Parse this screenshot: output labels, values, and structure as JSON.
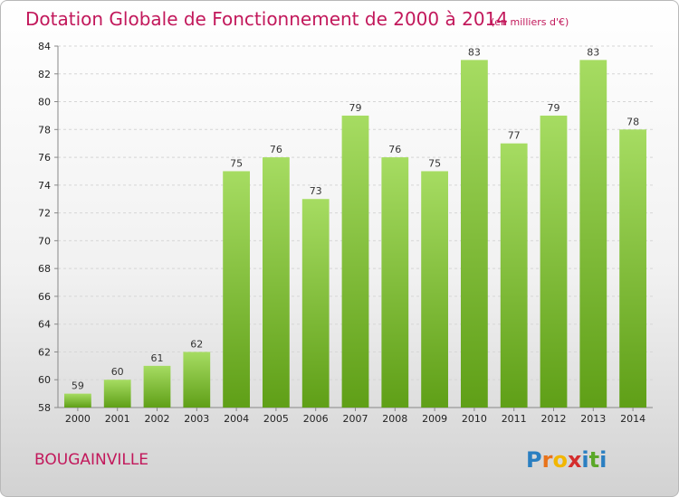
{
  "title": "Dotation Globale de Fonctionnement de 2000 à 2014",
  "unit_note": "(en milliers d'€)",
  "town": "BOUGAINVILLE",
  "logo": {
    "letters": [
      "P",
      "r",
      "o",
      "x",
      "i",
      "t",
      "i"
    ],
    "colors": [
      "#2a7fc1",
      "#e8731b",
      "#f2b600",
      "#d42d2d",
      "#2a7fc1",
      "#5ba829",
      "#2a7fc1"
    ]
  },
  "colors": {
    "bar_top": "#a6dc62",
    "bar_bottom": "#5f9f17",
    "title": "#c2185b"
  },
  "chart_data": {
    "type": "bar",
    "title": "Dotation Globale de Fonctionnement de 2000 à 2014",
    "categories": [
      "2000",
      "2001",
      "2002",
      "2003",
      "2004",
      "2005",
      "2006",
      "2007",
      "2008",
      "2009",
      "2010",
      "2011",
      "2012",
      "2013",
      "2014"
    ],
    "values": [
      59,
      60,
      61,
      62,
      75,
      76,
      73,
      79,
      76,
      75,
      83,
      77,
      79,
      83,
      78
    ],
    "yticks": [
      58,
      60,
      62,
      64,
      66,
      68,
      70,
      72,
      74,
      76,
      78,
      80,
      82,
      84
    ],
    "ylim": [
      58,
      84
    ],
    "grid": true
  }
}
